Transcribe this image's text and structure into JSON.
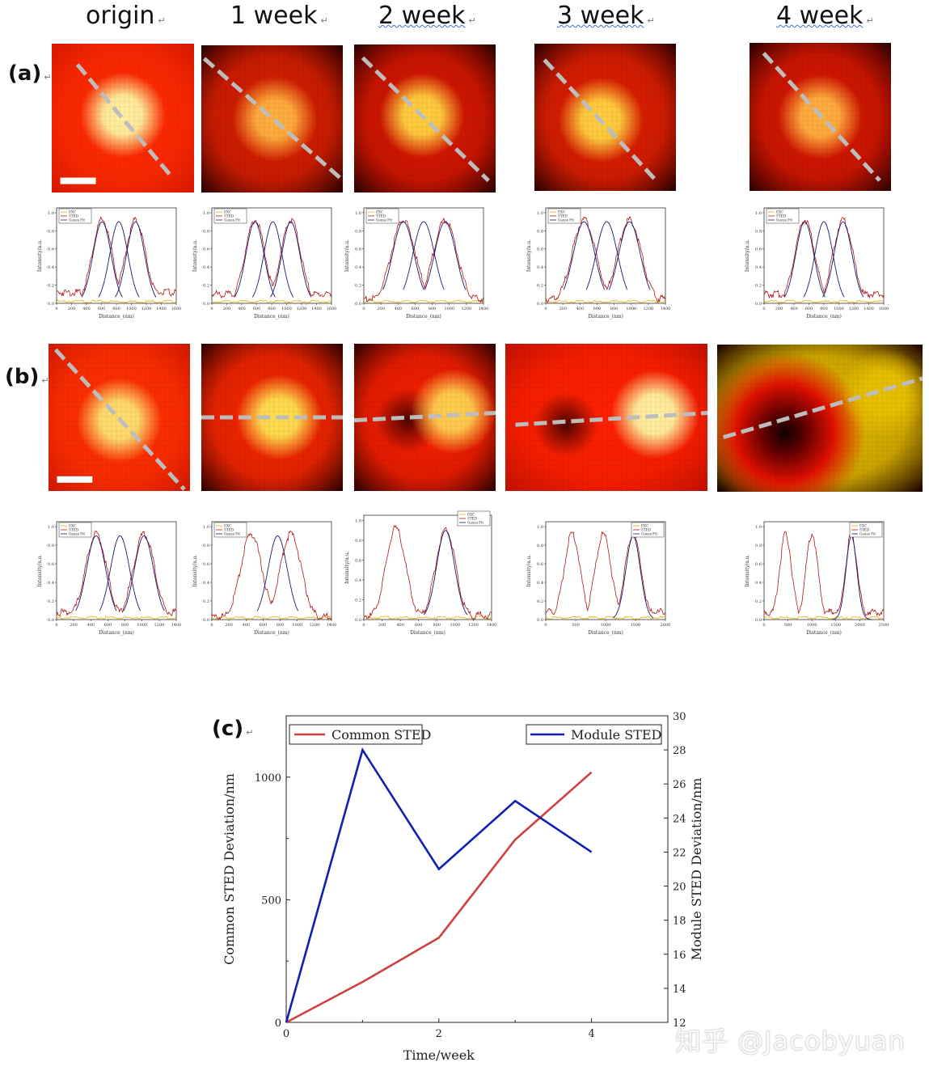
{
  "column_headers": [
    "origin",
    "1 week",
    "2 week",
    "3 week",
    "4 week"
  ],
  "row_labels": {
    "a": "(a)",
    "b": "(b)",
    "c": "(c)"
  },
  "return_mark": "↵",
  "mini_plots": {
    "xlabel": "Distance_(nm)",
    "ylabel": "Intensity/a.u.",
    "legend": [
      "EXC",
      "STED",
      "Gauss Fit"
    ],
    "colors": {
      "EXC": "#e0b000",
      "STED": "#b01818",
      "Gauss Fit": "#1a1a6e"
    },
    "yticks": [
      "0.0",
      "0.2",
      "0.4",
      "0.6",
      "0.8",
      "1.0"
    ],
    "row_a_xticks": [
      [
        "0",
        "200",
        "400",
        "600",
        "800",
        "1000",
        "1200",
        "1400",
        "1600"
      ],
      [
        "0",
        "200",
        "400",
        "600",
        "800",
        "1000",
        "1200",
        "1400",
        "1600"
      ],
      [
        "0",
        "200",
        "400",
        "600",
        "800",
        "1000",
        "1200",
        "1400"
      ],
      [
        "0",
        "200",
        "400",
        "600",
        "800",
        "1000",
        "1200",
        "1400"
      ],
      [
        "0",
        "200",
        "400",
        "600",
        "800",
        "1000",
        "1200",
        "1400",
        "1600"
      ]
    ],
    "row_b_xticks": [
      [
        "0",
        "200",
        "400",
        "600",
        "800",
        "1000",
        "1200",
        "1400"
      ],
      [
        "0",
        "200",
        "400",
        "600",
        "800",
        "1000",
        "1200",
        "1400"
      ],
      [
        "0",
        "200",
        "400",
        "600",
        "800",
        "1000",
        "1200",
        "1400"
      ],
      [
        "0",
        "500",
        "1000",
        "1500",
        "2000"
      ],
      [
        "0",
        "500",
        "1000",
        "1500",
        "2000",
        "2500"
      ]
    ]
  },
  "chart_data": {
    "type": "line",
    "x": [
      0,
      1,
      2,
      3,
      4
    ],
    "xlabel": "Time/week",
    "xticks": [
      "0",
      "2",
      "4"
    ],
    "xlim": [
      0,
      5
    ],
    "ylabel_left": "Common STED Deviation/nm",
    "ylabel_right": "Module STED Deviation/nm",
    "ylim_left": [
      0,
      1250
    ],
    "yticks_left": [
      "0",
      "500",
      "1000"
    ],
    "ylim_right": [
      12,
      30
    ],
    "yticks_right": [
      "12",
      "14",
      "16",
      "18",
      "20",
      "22",
      "24",
      "26",
      "28",
      "30"
    ],
    "series": [
      {
        "name": "Common STED",
        "axis": "left",
        "color": "#d04040",
        "values": [
          0,
          165,
          345,
          745,
          1020
        ]
      },
      {
        "name": "Module STED",
        "axis": "right",
        "color": "#1020b0",
        "values": [
          12,
          28,
          21,
          25,
          22
        ]
      }
    ],
    "legend": {
      "left": "top-left",
      "right": "top-right"
    },
    "grid": false
  },
  "watermark": "知乎 @Jacobyuan"
}
